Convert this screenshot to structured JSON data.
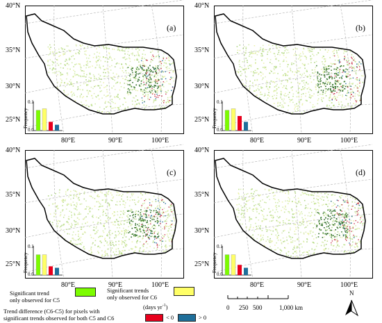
{
  "lat_labels": [
    "40°N",
    "35°N",
    "30°N",
    "25°N"
  ],
  "lon_labels": [
    "80°E",
    "90°E",
    "100°E"
  ],
  "panels": [
    {
      "label": "(a)",
      "bars": [
        0.07,
        0.075,
        0.03,
        0.02
      ]
    },
    {
      "label": "(b)",
      "bars": [
        0.07,
        0.075,
        0.05,
        0.03
      ]
    },
    {
      "label": "(c)",
      "bars": [
        0.07,
        0.07,
        0.03,
        0.025
      ]
    },
    {
      "label": "(d)",
      "bars": [
        0.07,
        0.07,
        0.035,
        0.025
      ]
    }
  ],
  "inset": {
    "ylabel": "Frequency",
    "yticks": [
      "0.1",
      "0.0"
    ],
    "ymax": 0.1
  },
  "legend": {
    "item1": "Significant trend\nonly observed for C5",
    "item2": "Significant trends\nonly observed for C6",
    "item3": "Trend difference (C6-C5) for pixels with\nsignificant trends observed for both C5 and C6",
    "unit": "(days yr",
    "unit_sup": "-1",
    "unit_end": ")",
    "neg": "< 0",
    "pos": "> 0",
    "colors": {
      "c5": "#7cfc00",
      "c6": "#ffff66",
      "neg": "#e8001c",
      "pos": "#1f6f9a"
    }
  },
  "scalebar": {
    "ticks": [
      "0",
      "250",
      "500",
      "1,000"
    ],
    "unit": "km"
  },
  "north": "N"
}
